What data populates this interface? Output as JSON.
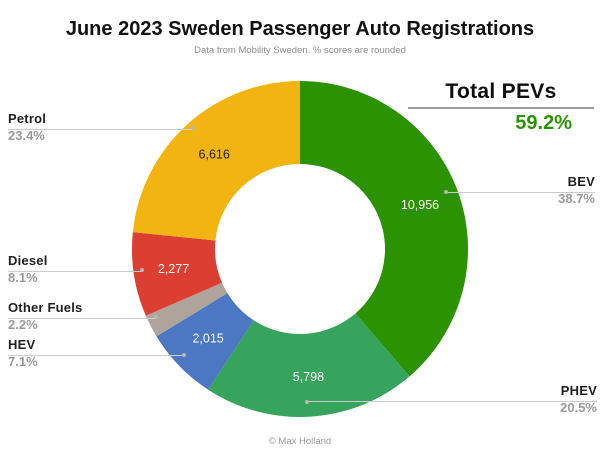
{
  "header": {
    "title": "June 2023 Sweden Passenger Auto Registrations",
    "subtitle": "Data from Mobility Sweden. % scores are rounded"
  },
  "total_pevs": {
    "label": "Total PEVs",
    "value": "59.2%",
    "color": "#2b9400"
  },
  "footer": {
    "credit": "© Max Holland"
  },
  "chart_data": {
    "type": "pie",
    "donut": true,
    "title": "June 2023 Sweden Passenger Auto Registrations",
    "subtitle": "Data from Mobility Sweden. % scores are rounded",
    "start_angle_deg": 0,
    "direction": "clockwise",
    "legend_position": "outside-callouts",
    "total_pevs_pct": 59.2,
    "slices": [
      {
        "label": "BEV",
        "value": 10956,
        "value_label": "10,956",
        "pct": 38.7,
        "pct_label": "38.7%",
        "color": "#2b9201",
        "text_color": "#ffffff"
      },
      {
        "label": "PHEV",
        "value": 5798,
        "value_label": "5,798",
        "pct": 20.5,
        "pct_label": "20.5%",
        "color": "#36a45c",
        "text_color": "#ffffff"
      },
      {
        "label": "HEV",
        "value": 2015,
        "value_label": "2,015",
        "pct": 7.1,
        "pct_label": "7.1%",
        "color": "#4b77c3",
        "text_color": "#ffffff"
      },
      {
        "label": "Other Fuels",
        "value": null,
        "value_label": null,
        "pct": 2.2,
        "pct_label": "2.2%",
        "color": "#aea49c",
        "text_color": "#ffffff"
      },
      {
        "label": "Diesel",
        "value": 2277,
        "value_label": "2,277",
        "pct": 8.1,
        "pct_label": "8.1%",
        "color": "#dc3e31",
        "text_color": "#ffffff"
      },
      {
        "label": "Petrol",
        "value": 6616,
        "value_label": "6,616",
        "pct": 23.4,
        "pct_label": "23.4%",
        "color": "#f2b411",
        "text_color": "#222222"
      }
    ]
  }
}
